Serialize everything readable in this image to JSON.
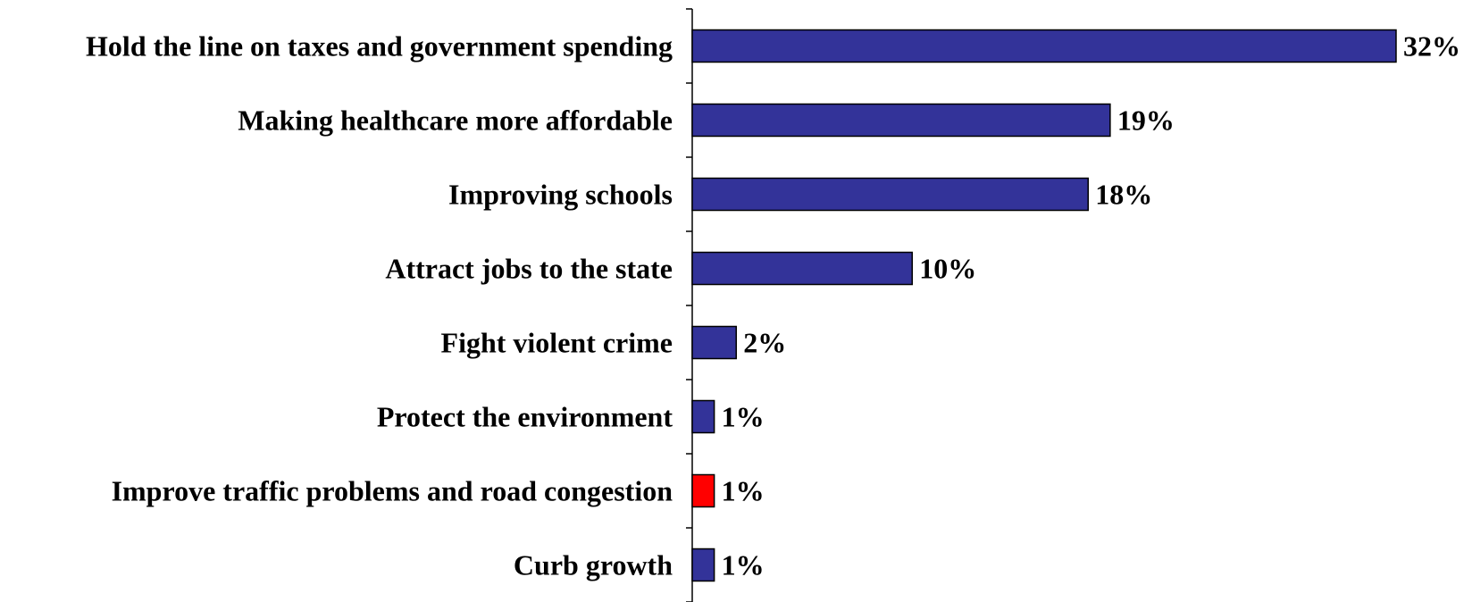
{
  "chart_data": {
    "type": "bar",
    "orientation": "horizontal",
    "categories": [
      "Hold the line on taxes and government spending",
      "Making healthcare more affordable",
      "Improving schools",
      "Attract jobs to the state",
      "Fight violent crime",
      "Protect the environment",
      "Improve traffic problems and road congestion",
      "Curb growth"
    ],
    "values": [
      32,
      19,
      18,
      10,
      2,
      1,
      1,
      1
    ],
    "value_labels": [
      "32%",
      "19%",
      "18%",
      "10%",
      "2%",
      "1%",
      "1%",
      "1%"
    ],
    "bar_colors": [
      "#333399",
      "#333399",
      "#333399",
      "#333399",
      "#333399",
      "#333399",
      "#ff0000",
      "#333399"
    ],
    "xlim": [
      0,
      32
    ],
    "grid": false,
    "title": "",
    "xlabel": "",
    "ylabel": ""
  }
}
